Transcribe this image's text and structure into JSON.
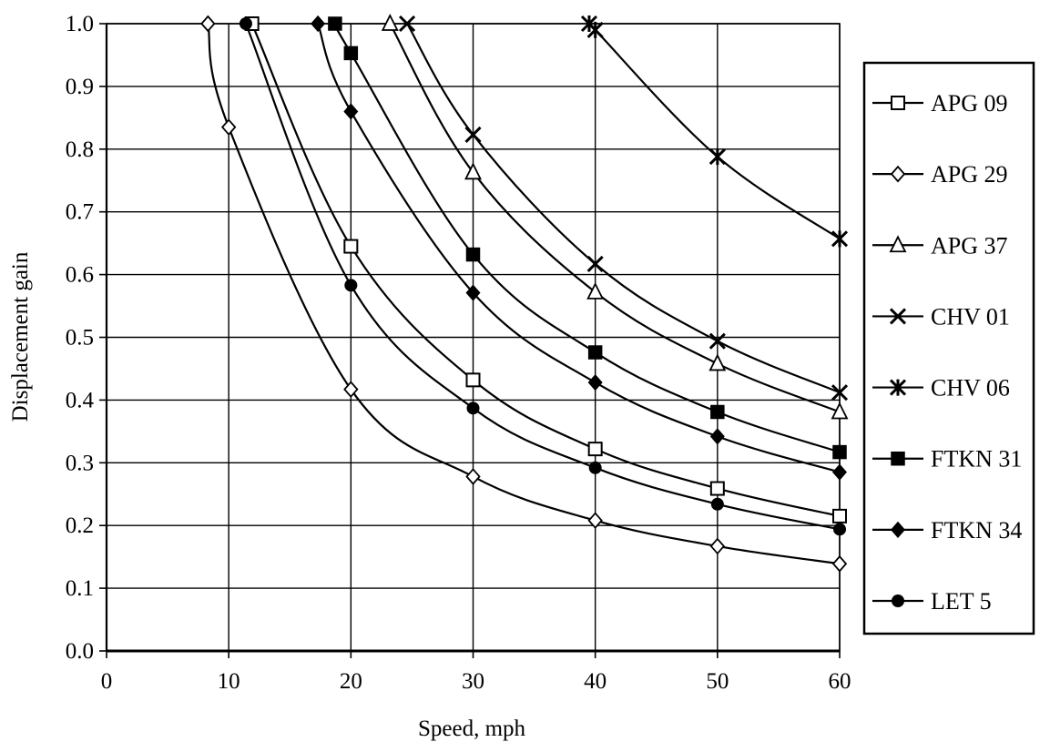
{
  "chart_data": {
    "type": "line",
    "title": "",
    "xlabel": "Speed, mph",
    "ylabel": "Displacement gain",
    "xlim": [
      0,
      60
    ],
    "ylim": [
      0.0,
      1.0
    ],
    "x_ticks": [
      "0",
      "10",
      "20",
      "30",
      "40",
      "50",
      "60"
    ],
    "y_ticks": [
      "0.0",
      "0.1",
      "0.2",
      "0.3",
      "0.4",
      "0.5",
      "0.6",
      "0.7",
      "0.8",
      "0.9",
      "1.0"
    ],
    "grid": true,
    "legend_position": "right",
    "series": [
      {
        "name": "APG 09",
        "marker": "square-open",
        "x": [
          11.9,
          20,
          30,
          40,
          50,
          60
        ],
        "y": [
          1.0,
          0.645,
          0.432,
          0.322,
          0.259,
          0.215
        ]
      },
      {
        "name": "APG 29",
        "marker": "diamond-open",
        "x": [
          8.3,
          10,
          20,
          30,
          40,
          50,
          60
        ],
        "y": [
          1.0,
          0.835,
          0.417,
          0.278,
          0.208,
          0.167,
          0.139
        ]
      },
      {
        "name": "APG 37",
        "marker": "triangle-open",
        "x": [
          23.2,
          30,
          40,
          50,
          60
        ],
        "y": [
          1.0,
          0.763,
          0.572,
          0.458,
          0.381
        ]
      },
      {
        "name": "CHV 01",
        "marker": "x",
        "x": [
          24.6,
          30,
          40,
          50,
          60
        ],
        "y": [
          1.0,
          0.823,
          0.617,
          0.494,
          0.412
        ]
      },
      {
        "name": "CHV 06",
        "marker": "star",
        "x": [
          39.5,
          40,
          50,
          60
        ],
        "y": [
          1.0,
          0.99,
          0.788,
          0.657
        ]
      },
      {
        "name": "FTKN 31",
        "marker": "square-filled",
        "x": [
          18.7,
          20,
          30,
          40,
          50,
          60
        ],
        "y": [
          1.0,
          0.953,
          0.632,
          0.476,
          0.381,
          0.317
        ]
      },
      {
        "name": "FTKN 34",
        "marker": "diamond-filled",
        "x": [
          17.3,
          20,
          30,
          40,
          50,
          60
        ],
        "y": [
          1.0,
          0.86,
          0.571,
          0.428,
          0.342,
          0.285
        ]
      },
      {
        "name": "LET 5",
        "marker": "circle-filled",
        "x": [
          11.4,
          20,
          30,
          40,
          50,
          60
        ],
        "y": [
          1.0,
          0.583,
          0.387,
          0.292,
          0.234,
          0.194
        ]
      }
    ]
  }
}
